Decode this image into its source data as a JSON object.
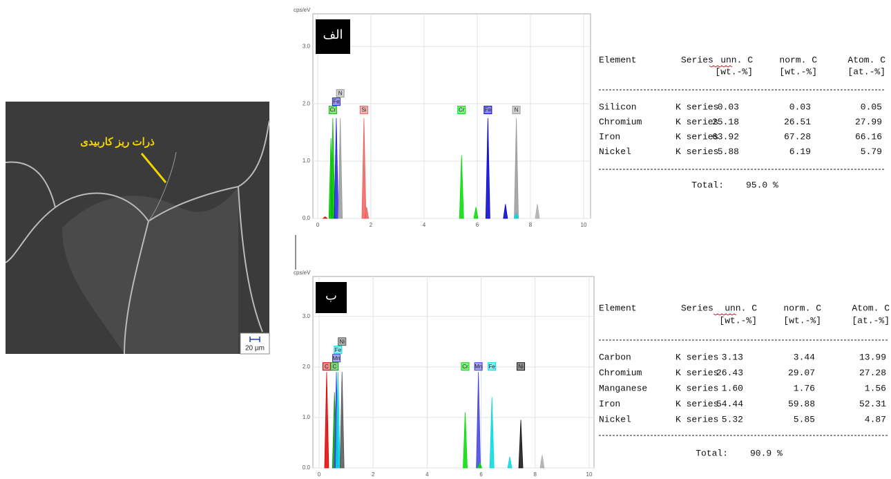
{
  "micrograph": {
    "label": "ذرات ریز کاربیدی",
    "scale": "20 µm"
  },
  "chart_data": [
    {
      "type": "spectrum",
      "title": "الف",
      "ylabel": "cps/eV",
      "xlim": [
        -0.18,
        10.26
      ],
      "ylim": [
        0,
        3.57
      ],
      "xticks": [
        0,
        2,
        4,
        6,
        8,
        10
      ],
      "yticks": [
        {
          "value": 0,
          "label": "0.0"
        },
        {
          "value": 1,
          "label": "1.0"
        },
        {
          "value": 2,
          "label": "2.0"
        },
        {
          "value": 3,
          "label": "3.0"
        }
      ],
      "grid": true,
      "peaks": [
        {
          "x": 0.28,
          "y": 0.03,
          "color": "#e00000"
        },
        {
          "x": 0.5,
          "y": 1.4,
          "color": "#00c000"
        },
        {
          "x": 0.57,
          "y": 1.75,
          "color": "#00c000",
          "label": "Cr"
        },
        {
          "x": 0.7,
          "y": 1.75,
          "color": "#2020e0",
          "label": "Fe"
        },
        {
          "x": 0.85,
          "y": 1.75,
          "color": "#999999",
          "label": "N"
        },
        {
          "x": 1.74,
          "y": 1.75,
          "color": "#f06060",
          "label": "Si"
        },
        {
          "x": 1.84,
          "y": 0.2,
          "color": "#f06060"
        },
        {
          "x": 5.41,
          "y": 1.1,
          "color": "#00dd00",
          "label": "Cr"
        },
        {
          "x": 5.95,
          "y": 0.2,
          "color": "#00dd00"
        },
        {
          "x": 6.4,
          "y": 1.75,
          "color": "#0000d0",
          "label": "Fe"
        },
        {
          "x": 7.06,
          "y": 0.25,
          "color": "#0000d0"
        },
        {
          "x": 7.47,
          "y": 1.75,
          "color": "#999999",
          "label": "N"
        },
        {
          "x": 7.47,
          "y": 0.1,
          "color": "#00d8e0"
        },
        {
          "x": 8.26,
          "y": 0.25,
          "color": "#aaaaaa"
        }
      ]
    },
    {
      "type": "spectrum",
      "title": "ب",
      "ylabel": "cps/eV",
      "xlim": [
        -0.23,
        10.18
      ],
      "ylim": [
        0,
        3.79
      ],
      "xticks": [
        0,
        2,
        4,
        6,
        8,
        10
      ],
      "yticks": [
        {
          "value": 0,
          "label": "0.0"
        },
        {
          "value": 1,
          "label": "1.0"
        },
        {
          "value": 2,
          "label": "2.0"
        },
        {
          "value": 3,
          "label": "3.0"
        }
      ],
      "grid": true,
      "peaks": [
        {
          "x": 0.28,
          "y": 1.9,
          "color": "#e00000",
          "label": "C"
        },
        {
          "x": 0.57,
          "y": 1.5,
          "color": "#00a000",
          "label": "C"
        },
        {
          "x": 0.64,
          "y": 1.9,
          "color": "#4040e0",
          "label": "Mn"
        },
        {
          "x": 0.7,
          "y": 1.9,
          "color": "#00d8e0",
          "label": "Fe"
        },
        {
          "x": 0.85,
          "y": 1.9,
          "color": "#555555",
          "label": "Ni"
        },
        {
          "x": 5.41,
          "y": 1.1,
          "color": "#00dd00",
          "label": "Cr"
        },
        {
          "x": 5.9,
          "y": 1.9,
          "color": "#4040e0",
          "label": "Mn"
        },
        {
          "x": 5.95,
          "y": 0.1,
          "color": "#00dd00"
        },
        {
          "x": 6.4,
          "y": 1.4,
          "color": "#00d8e0",
          "label": "Fe"
        },
        {
          "x": 7.06,
          "y": 0.22,
          "color": "#00d8e0"
        },
        {
          "x": 7.47,
          "y": 0.95,
          "color": "#111111",
          "label": "Ni"
        },
        {
          "x": 8.26,
          "y": 0.25,
          "color": "#aaaaaa"
        }
      ]
    }
  ],
  "tables": [
    {
      "header": [
        "Element",
        "Series",
        "unn. C",
        "norm. C",
        "Atom. C"
      ],
      "units": [
        "[wt.-%]",
        "[wt.-%]",
        "[at.-%]"
      ],
      "rows": [
        [
          "Silicon",
          "K series",
          "0.03",
          "0.03",
          "0.05"
        ],
        [
          "Chromium",
          "K series",
          "25.18",
          "26.51",
          "27.99"
        ],
        [
          "Iron",
          "K series",
          "63.92",
          "67.28",
          "66.16"
        ],
        [
          "Nickel",
          "K series",
          "5.88",
          "6.19",
          "5.79"
        ]
      ],
      "total_label": "Total:",
      "total": "95.0 %"
    },
    {
      "header": [
        "Element",
        "Series",
        "unn. C",
        "norm. C",
        "Atom. C"
      ],
      "units": [
        "[wt.-%]",
        "[wt.-%]",
        "[at.-%]"
      ],
      "rows": [
        [
          "Carbon",
          "K series",
          "3.13",
          "3.44",
          "13.99"
        ],
        [
          "Chromium",
          "K series",
          "26.43",
          "29.07",
          "27.28"
        ],
        [
          "Manganese",
          "K series",
          "1.60",
          "1.76",
          "1.56"
        ],
        [
          "Iron",
          "K series",
          "54.44",
          "59.88",
          "52.31"
        ],
        [
          "Nickel",
          "K series",
          "5.32",
          "5.85",
          "4.87"
        ]
      ],
      "total_label": "Total:",
      "total": "90.9 %"
    }
  ]
}
